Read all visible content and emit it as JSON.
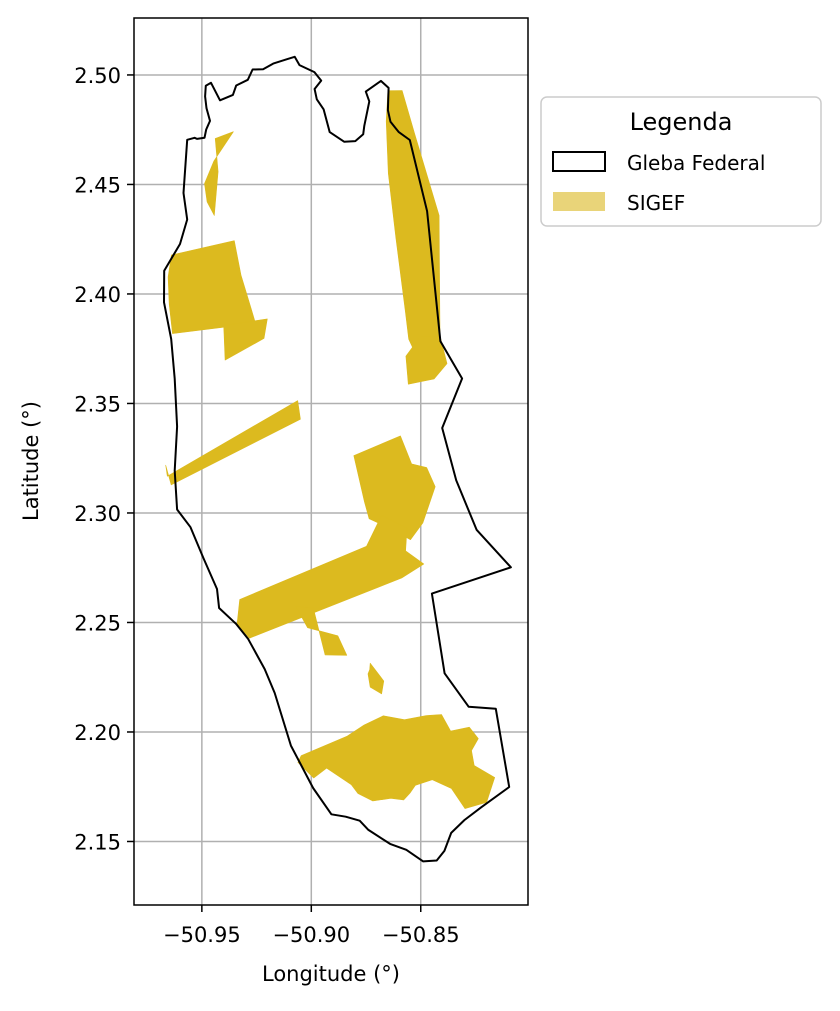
{
  "chart_data": {
    "type": "map",
    "xlabel": "Longitude (°)",
    "ylabel": "Latitude (°)",
    "xlim": [
      -50.981,
      -50.801
    ],
    "ylim": [
      2.121,
      2.526
    ],
    "x_ticks": [
      -50.95,
      -50.9,
      -50.85
    ],
    "x_tick_labels": [
      "−50.95",
      "−50.90",
      "−50.85"
    ],
    "y_ticks": [
      2.15,
      2.2,
      2.25,
      2.3,
      2.35,
      2.4,
      2.45,
      2.5
    ],
    "y_tick_labels": [
      "2.15",
      "2.20",
      "2.25",
      "2.30",
      "2.35",
      "2.40",
      "2.45",
      "2.50"
    ],
    "grid": true,
    "legend": {
      "title": "Legenda",
      "placement": "outside-right-top",
      "entries": [
        {
          "label": "Gleba Federal",
          "style": "outline",
          "edge_color": "#000000",
          "fill": "#ffffff"
        },
        {
          "label": "SIGEF",
          "style": "fill",
          "fill": "#dbb820",
          "alpha": 0.6
        }
      ]
    },
    "colors": {
      "boundary": "#000000",
      "sigef": "#dcba1f",
      "grid": "#b0b0b0"
    },
    "boundary_name": "Gleba Federal",
    "boundary": [
      [
        -50.9567,
        2.4704
      ],
      [
        -50.9533,
        2.4713
      ],
      [
        -50.9522,
        2.4708
      ],
      [
        -50.9488,
        2.4713
      ],
      [
        -50.948,
        2.4751
      ],
      [
        -50.9463,
        2.479
      ],
      [
        -50.9479,
        2.4848
      ],
      [
        -50.9485,
        2.4902
      ],
      [
        -50.9482,
        2.4951
      ],
      [
        -50.9458,
        2.4964
      ],
      [
        -50.9417,
        2.4884
      ],
      [
        -50.9358,
        2.4909
      ],
      [
        -50.9343,
        2.4952
      ],
      [
        -50.929,
        2.4978
      ],
      [
        -50.9268,
        2.5025
      ],
      [
        -50.922,
        2.5026
      ],
      [
        -50.9174,
        2.5052
      ],
      [
        -50.9111,
        2.5072
      ],
      [
        -50.9076,
        2.5083
      ],
      [
        -50.9054,
        2.5045
      ],
      [
        -50.8986,
        2.5013
      ],
      [
        -50.8955,
        2.4974
      ],
      [
        -50.8985,
        2.4936
      ],
      [
        -50.8975,
        2.4889
      ],
      [
        -50.8944,
        2.4843
      ],
      [
        -50.8916,
        2.4739
      ],
      [
        -50.885,
        2.4695
      ],
      [
        -50.8799,
        2.4698
      ],
      [
        -50.8763,
        2.4729
      ],
      [
        -50.8758,
        2.4768
      ],
      [
        -50.8735,
        2.4879
      ],
      [
        -50.8751,
        2.4924
      ],
      [
        -50.8682,
        2.4973
      ],
      [
        -50.8647,
        2.4941
      ],
      [
        -50.865,
        2.4839
      ],
      [
        -50.8638,
        2.4786
      ],
      [
        -50.8601,
        2.474
      ],
      [
        -50.855,
        2.4703
      ],
      [
        -50.8471,
        2.4378
      ],
      [
        -50.841,
        2.3784
      ],
      [
        -50.8311,
        2.3614
      ],
      [
        -50.8402,
        2.3388
      ],
      [
        -50.8338,
        2.3149
      ],
      [
        -50.8245,
        2.2923
      ],
      [
        -50.8088,
        2.2752
      ],
      [
        -50.8449,
        2.2632
      ],
      [
        -50.8391,
        2.2268
      ],
      [
        -50.8281,
        2.2115
      ],
      [
        -50.8157,
        2.2106
      ],
      [
        -50.8096,
        2.1749
      ],
      [
        -50.8224,
        2.1656
      ],
      [
        -50.83,
        2.1598
      ],
      [
        -50.8361,
        2.1539
      ],
      [
        -50.8392,
        2.1457
      ],
      [
        -50.8427,
        2.1413
      ],
      [
        -50.8489,
        2.1409
      ],
      [
        -50.8566,
        2.1462
      ],
      [
        -50.864,
        2.1489
      ],
      [
        -50.8739,
        2.1553
      ],
      [
        -50.8779,
        2.1595
      ],
      [
        -50.8843,
        2.1613
      ],
      [
        -50.8908,
        2.1624
      ],
      [
        -50.8992,
        2.1744
      ],
      [
        -50.9093,
        2.1938
      ],
      [
        -50.9167,
        2.2178
      ],
      [
        -50.9213,
        2.2287
      ],
      [
        -50.9289,
        2.2426
      ],
      [
        -50.9344,
        2.2494
      ],
      [
        -50.9421,
        2.2566
      ],
      [
        -50.9431,
        2.2653
      ],
      [
        -50.9492,
        2.2792
      ],
      [
        -50.9552,
        2.2935
      ],
      [
        -50.9613,
        2.3016
      ],
      [
        -50.9624,
        2.3193
      ],
      [
        -50.9613,
        2.3395
      ],
      [
        -50.9624,
        2.3613
      ],
      [
        -50.964,
        2.3794
      ],
      [
        -50.9673,
        2.3962
      ],
      [
        -50.9672,
        2.4106
      ],
      [
        -50.96,
        2.4228
      ],
      [
        -50.9567,
        2.434
      ],
      [
        -50.9584,
        2.4461
      ],
      [
        -50.9567,
        2.4704
      ]
    ],
    "sigef_polygons": [
      [
        [
          -50.865,
          2.4928
        ],
        [
          -50.8585,
          2.4929
        ],
        [
          -50.8528,
          2.4732
        ],
        [
          -50.8416,
          2.4358
        ],
        [
          -50.8412,
          2.381
        ],
        [
          -50.8456,
          2.3706
        ],
        [
          -50.8511,
          2.37
        ],
        [
          -50.8555,
          2.3794
        ],
        [
          -50.8571,
          2.3926
        ],
        [
          -50.8613,
          2.4252
        ],
        [
          -50.8648,
          2.4551
        ],
        [
          -50.8658,
          2.4789
        ]
      ],
      [
        [
          -50.8502,
          2.3805
        ],
        [
          -50.8411,
          2.3805
        ],
        [
          -50.838,
          2.3682
        ],
        [
          -50.8439,
          2.3612
        ],
        [
          -50.8557,
          2.3588
        ],
        [
          -50.8568,
          2.3716
        ]
      ],
      [
        [
          -50.9356,
          2.4741
        ],
        [
          -50.9445,
          2.4607
        ],
        [
          -50.9488,
          2.4504
        ],
        [
          -50.9476,
          2.4421
        ],
        [
          -50.9443,
          2.4358
        ],
        [
          -50.9426,
          2.4558
        ],
        [
          -50.9439,
          2.471
        ]
      ],
      [
        [
          -50.9639,
          2.4178
        ],
        [
          -50.9352,
          2.4243
        ],
        [
          -50.9321,
          2.4086
        ],
        [
          -50.9274,
          2.3931
        ],
        [
          -50.9255,
          2.3866
        ],
        [
          -50.9634,
          2.3819
        ],
        [
          -50.9649,
          2.3953
        ],
        [
          -50.9654,
          2.4077
        ]
      ],
      [
        [
          -50.94,
          2.3856
        ],
        [
          -50.9201,
          2.3886
        ],
        [
          -50.9216,
          2.3797
        ],
        [
          -50.9394,
          2.3698
        ]
      ],
      [
        [
          -50.9658,
          2.3168
        ],
        [
          -50.9062,
          2.3513
        ],
        [
          -50.905,
          2.3428
        ],
        [
          -50.964,
          2.3128
        ],
        [
          -50.9665,
          2.3218
        ]
      ],
      [
        [
          -50.8806,
          2.3262
        ],
        [
          -50.8593,
          2.3352
        ],
        [
          -50.8542,
          2.3224
        ],
        [
          -50.8473,
          2.3207
        ],
        [
          -50.8434,
          2.312
        ],
        [
          -50.849,
          2.2955
        ],
        [
          -50.8547,
          2.2878
        ],
        [
          -50.8633,
          2.2926
        ],
        [
          -50.8736,
          2.2974
        ],
        [
          -50.8757,
          2.305
        ]
      ],
      [
        [
          -50.9327,
          2.2605
        ],
        [
          -50.8748,
          2.2848
        ],
        [
          -50.8679,
          2.299
        ],
        [
          -50.8563,
          2.293
        ],
        [
          -50.8569,
          2.2827
        ],
        [
          -50.8486,
          2.2767
        ],
        [
          -50.8587,
          2.2703
        ],
        [
          -50.9283,
          2.2428
        ],
        [
          -50.9339,
          2.2494
        ]
      ],
      [
        [
          -50.9071,
          2.2573
        ],
        [
          -50.8991,
          2.2566
        ],
        [
          -50.8937,
          2.2352
        ],
        [
          -50.8838,
          2.235
        ],
        [
          -50.8879,
          2.2439
        ],
        [
          -50.9017,
          2.2476
        ]
      ],
      [
        [
          -50.8733,
          2.2285
        ],
        [
          -50.8741,
          2.2265
        ],
        [
          -50.8731,
          2.2205
        ],
        [
          -50.8679,
          2.2174
        ],
        [
          -50.8669,
          2.2233
        ],
        [
          -50.8731,
          2.2314
        ]
      ],
      [
        [
          -50.9046,
          2.1892
        ],
        [
          -50.8836,
          2.1981
        ],
        [
          -50.8759,
          2.2032
        ],
        [
          -50.8671,
          2.2074
        ],
        [
          -50.8574,
          2.2056
        ],
        [
          -50.8474,
          2.2075
        ],
        [
          -50.8405,
          2.208
        ],
        [
          -50.8363,
          2.2004
        ],
        [
          -50.8278,
          2.2022
        ],
        [
          -50.8237,
          2.197
        ],
        [
          -50.8268,
          2.1915
        ],
        [
          -50.8256,
          2.1847
        ],
        [
          -50.8162,
          2.1792
        ],
        [
          -50.8199,
          2.1679
        ],
        [
          -50.8298,
          2.165
        ],
        [
          -50.836,
          2.1742
        ],
        [
          -50.8447,
          2.1782
        ],
        [
          -50.8525,
          2.1756
        ],
        [
          -50.8549,
          2.1721
        ],
        [
          -50.8578,
          2.169
        ],
        [
          -50.8637,
          2.1697
        ],
        [
          -50.8719,
          2.1685
        ],
        [
          -50.8787,
          2.1719
        ],
        [
          -50.8817,
          2.1759
        ],
        [
          -50.893,
          2.1835
        ],
        [
          -50.8989,
          2.179
        ],
        [
          -50.9061,
          2.1861
        ]
      ]
    ]
  }
}
